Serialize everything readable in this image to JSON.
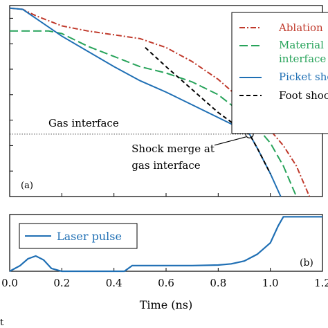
{
  "chart_data": [
    {
      "type": "line",
      "panel_label": "(a)",
      "xlim": [
        0,
        1.2
      ],
      "ylim": [
        0,
        7.5
      ],
      "yticks": [
        0,
        1,
        2,
        3,
        4,
        5,
        6,
        7
      ],
      "ytick_labels": [
        "",
        "",
        "",
        "",
        "",
        "",
        "",
        ""
      ],
      "series": [
        {
          "name": "Ablation",
          "color": "#c0392b",
          "style": "dashdot",
          "x": [
            0.0,
            0.05,
            0.1,
            0.2,
            0.3,
            0.4,
            0.5,
            0.6,
            0.7,
            0.8,
            0.9,
            0.95,
            1.0,
            1.05,
            1.1,
            1.15
          ],
          "y": [
            7.4,
            7.35,
            7.1,
            6.7,
            6.5,
            6.35,
            6.2,
            5.85,
            5.3,
            4.6,
            3.7,
            3.1,
            2.6,
            2.0,
            1.2,
            0.0
          ]
        },
        {
          "name": "Material interface",
          "color": "#27a35a",
          "style": "dashed",
          "x": [
            0.0,
            0.1,
            0.15,
            0.2,
            0.3,
            0.4,
            0.5,
            0.6,
            0.7,
            0.8,
            0.9,
            0.95,
            1.0,
            1.05,
            1.1
          ],
          "y": [
            6.5,
            6.5,
            6.5,
            6.4,
            5.9,
            5.5,
            5.1,
            4.85,
            4.5,
            4.0,
            3.2,
            2.7,
            2.1,
            1.2,
            0.0
          ]
        },
        {
          "name": "Picket shock",
          "color": "#1f6fb4",
          "style": "solid",
          "x": [
            0.0,
            0.05,
            0.1,
            0.2,
            0.3,
            0.4,
            0.5,
            0.6,
            0.7,
            0.8,
            0.9,
            0.92,
            0.95,
            1.0,
            1.04
          ],
          "y": [
            7.4,
            7.35,
            7.0,
            6.3,
            5.7,
            5.1,
            4.55,
            4.1,
            3.6,
            3.1,
            2.6,
            2.45,
            1.9,
            0.9,
            0.0
          ]
        },
        {
          "name": "Foot shock",
          "color": "#000000",
          "style": "dashed",
          "x": [
            0.52,
            0.6,
            0.7,
            0.8,
            0.9,
            0.92,
            0.95,
            1.0
          ],
          "y": [
            5.85,
            5.1,
            4.2,
            3.3,
            2.55,
            2.45,
            1.9,
            0.9
          ]
        }
      ],
      "reference_line": {
        "label": "Gas interface",
        "y": 2.45
      },
      "annotation": {
        "label_line1": "Shock merge at",
        "label_line2": "gas interface",
        "x": 0.92,
        "y": 2.45
      },
      "legend": {
        "placement": "top-right",
        "entries": [
          {
            "line1": "Ablation",
            "line2": ""
          },
          {
            "line1": "Material",
            "line2": "interface"
          },
          {
            "line1": "Picket shock",
            "line2": ""
          },
          {
            "line1": "Foot shock",
            "line2": ""
          }
        ]
      }
    },
    {
      "type": "line",
      "panel_label": "(b)",
      "xlim": [
        0,
        1.2
      ],
      "ylim": [
        0,
        1
      ],
      "xlabel": "Time (ns)",
      "xticks": [
        0.0,
        0.2,
        0.4,
        0.6,
        0.8,
        1.0,
        1.2
      ],
      "xtick_labels": [
        "0.0",
        "0.2",
        "0.4",
        "0.6",
        "0.8",
        "1.0",
        "1.2"
      ],
      "series": [
        {
          "name": "Laser pulse",
          "color": "#1f6fb4",
          "style": "solid",
          "x": [
            0.0,
            0.04,
            0.07,
            0.1,
            0.13,
            0.16,
            0.2,
            0.44,
            0.47,
            0.5,
            0.6,
            0.7,
            0.8,
            0.85,
            0.9,
            0.95,
            1.0,
            1.03,
            1.05,
            1.2
          ],
          "y": [
            0.0,
            0.1,
            0.22,
            0.27,
            0.2,
            0.05,
            0.0,
            0.0,
            0.1,
            0.1,
            0.1,
            0.1,
            0.11,
            0.13,
            0.18,
            0.3,
            0.5,
            0.8,
            0.96,
            0.96
          ]
        }
      ],
      "legend": {
        "placement": "top-left",
        "entries": [
          {
            "line1": "Laser pulse",
            "line2": ""
          }
        ]
      }
    }
  ],
  "corner_text": "t"
}
